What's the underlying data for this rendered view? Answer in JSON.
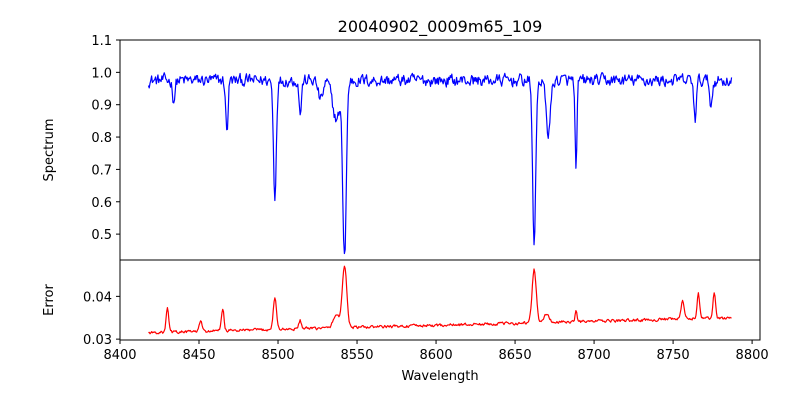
{
  "chart_data": [
    {
      "type": "line",
      "title": "20040902_0009m65_109",
      "xlabel": "",
      "ylabel": "Spectrum",
      "xlim": [
        8400,
        8805
      ],
      "ylim": [
        0.42,
        1.1
      ],
      "y_ticks": [
        0.5,
        0.6,
        0.7,
        0.8,
        0.9,
        1.0,
        1.1
      ],
      "y_tick_labels": [
        "0.5",
        "0.6",
        "0.7",
        "0.8",
        "0.9",
        "1.0",
        "1.1"
      ],
      "grid": false,
      "color": "#0000ff",
      "x_range": [
        8418,
        8787
      ],
      "baseline": 0.975,
      "noise": 0.03,
      "lines": [
        {
          "center": 8498.0,
          "depth": 0.36,
          "width": 0.9
        },
        {
          "center": 8542.1,
          "depth": 0.54,
          "width": 1.1
        },
        {
          "center": 8662.1,
          "depth": 0.5,
          "width": 1.0
        },
        {
          "center": 8688.6,
          "depth": 0.29,
          "width": 0.6
        },
        {
          "center": 8514.1,
          "depth": 0.1,
          "width": 0.8
        },
        {
          "center": 8467.3,
          "depth": 0.1,
          "width": 0.7
        },
        {
          "center": 8434.0,
          "depth": 0.06,
          "width": 0.8
        },
        {
          "center": 8468.0,
          "depth": 0.08,
          "width": 0.6
        },
        {
          "center": 8671.0,
          "depth": 0.16,
          "width": 1.4
        },
        {
          "center": 8764.0,
          "depth": 0.12,
          "width": 0.8
        },
        {
          "center": 8774.0,
          "depth": 0.08,
          "width": 0.8
        },
        {
          "center": 8527.0,
          "depth": 0.06,
          "width": 1.5
        },
        {
          "center": 8537.0,
          "depth": 0.12,
          "width": 2.5
        }
      ]
    },
    {
      "type": "line",
      "title": "",
      "xlabel": "Wavelength",
      "ylabel": "Error",
      "xlim": [
        8400,
        8805
      ],
      "ylim": [
        0.0298,
        0.0485
      ],
      "x_ticks": [
        8400,
        8450,
        8500,
        8550,
        8600,
        8650,
        8700,
        8750,
        8800
      ],
      "x_tick_labels": [
        "8400",
        "8450",
        "8500",
        "8550",
        "8600",
        "8650",
        "8700",
        "8750",
        "8800"
      ],
      "y_ticks": [
        0.03,
        0.04
      ],
      "y_tick_labels": [
        "0.03",
        "0.04"
      ],
      "grid": false,
      "color": "#ff0000",
      "x_range": [
        8418,
        8787
      ],
      "baseline_start": 0.0315,
      "baseline_end": 0.035,
      "noise": 0.0005,
      "peaks": [
        {
          "center": 8542.1,
          "height": 0.0145,
          "width": 1.4
        },
        {
          "center": 8662.1,
          "height": 0.0125,
          "width": 1.3
        },
        {
          "center": 8498.0,
          "height": 0.0075,
          "width": 1.0
        },
        {
          "center": 8430.0,
          "height": 0.0055,
          "width": 0.8
        },
        {
          "center": 8465.0,
          "height": 0.0052,
          "width": 0.8
        },
        {
          "center": 8451.0,
          "height": 0.0025,
          "width": 0.8
        },
        {
          "center": 8514.0,
          "height": 0.002,
          "width": 0.8
        },
        {
          "center": 8688.6,
          "height": 0.003,
          "width": 0.6
        },
        {
          "center": 8756.0,
          "height": 0.004,
          "width": 1.0
        },
        {
          "center": 8766.0,
          "height": 0.006,
          "width": 0.8
        },
        {
          "center": 8776.0,
          "height": 0.006,
          "width": 0.8
        },
        {
          "center": 8537.0,
          "height": 0.003,
          "width": 2.0
        },
        {
          "center": 8670.0,
          "height": 0.002,
          "width": 1.5
        }
      ]
    }
  ]
}
